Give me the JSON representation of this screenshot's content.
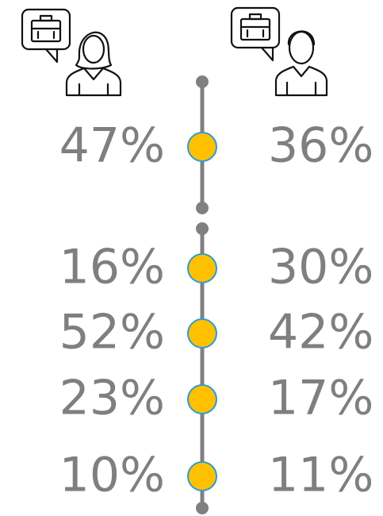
{
  "groups": [
    {
      "rows": [
        {
          "left": "47%",
          "right": "36%"
        }
      ]
    },
    {
      "rows": [
        {
          "left": "16%",
          "right": "30%"
        },
        {
          "left": "52%",
          "right": "42%"
        },
        {
          "left": "23%",
          "right": "17%"
        },
        {
          "left": "10%",
          "right": "11%"
        }
      ]
    }
  ]
}
